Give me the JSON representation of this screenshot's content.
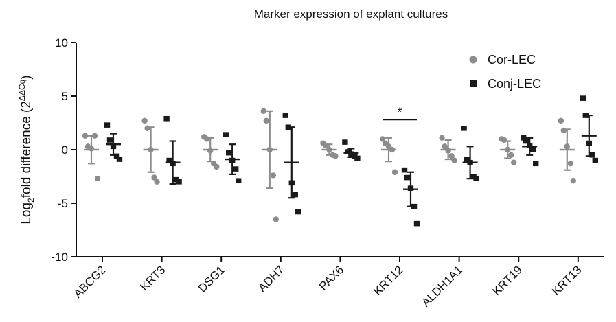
{
  "chart_data": {
    "type": "scatter",
    "title": "Marker expression of explant cultures",
    "ylabel": "Log",
    "ylabel_sub": "2",
    "ylabel_rest": "fold difference (2",
    "ylabel_sup": "ΔΔCq",
    "ylabel_close": ")",
    "ylim": [
      -10,
      10
    ],
    "yticks": [
      10,
      5,
      0,
      -5,
      -10
    ],
    "ytick_labels": [
      "10",
      "5",
      "0",
      "-5",
      "-10"
    ],
    "categories": [
      "ABCG2",
      "KRT3",
      "DSG1",
      "ADH7",
      "PAX6",
      "KRT12",
      "ALDH1A1",
      "KRT19",
      "KRT13"
    ],
    "legend_position": "top-right",
    "colors": {
      "cor": "#8c8c8c",
      "conj": "#1a1a1a",
      "axis": "#111111"
    },
    "significance": [
      {
        "category": "KRT12",
        "label": "*"
      }
    ],
    "series": [
      {
        "name": "Cor-LEC",
        "marker": "circle",
        "color": "#8c8c8c",
        "mean": [
          0.0,
          0.0,
          0.0,
          0.0,
          0.0,
          0.0,
          0.0,
          0.0,
          0.0
        ],
        "sd": [
          1.3,
          2.1,
          1.1,
          3.6,
          0.5,
          1.1,
          0.9,
          0.8,
          1.9
        ],
        "points": [
          [
            1.3,
            0.3,
            0.1,
            1.3,
            -2.7
          ],
          [
            2.7,
            2.0,
            0.0,
            -2.6,
            -3.0
          ],
          [
            1.2,
            1.0,
            -0.1,
            -1.3,
            -1.6
          ],
          [
            3.6,
            2.7,
            0.0,
            -2.4,
            -6.5
          ],
          [
            0.6,
            0.4,
            0.0,
            -0.5,
            -0.6
          ],
          [
            1.0,
            0.6,
            0.3,
            0.0,
            -2.1
          ],
          [
            1.1,
            0.3,
            -0.1,
            -0.6,
            -1.0
          ],
          [
            1.0,
            0.9,
            0.0,
            -0.5,
            -1.2
          ],
          [
            2.7,
            1.8,
            0.3,
            -1.3,
            -2.9
          ]
        ]
      },
      {
        "name": "Conj-LEC",
        "marker": "square",
        "color": "#1a1a1a",
        "mean": [
          0.5,
          -1.2,
          -0.9,
          -1.2,
          -0.3,
          -3.7,
          -1.2,
          0.3,
          1.3
        ],
        "sd": [
          1.0,
          2.0,
          1.4,
          3.3,
          0.4,
          1.6,
          1.5,
          0.8,
          1.9
        ],
        "points": [
          [
            2.3,
            0.9,
            0.3,
            -0.6,
            -0.9
          ],
          [
            2.9,
            -1.0,
            -1.3,
            -2.8,
            -3.0
          ],
          [
            1.4,
            -0.3,
            -1.0,
            -1.8,
            -2.9
          ],
          [
            3.2,
            2.1,
            -3.1,
            -4.2,
            -5.8
          ],
          [
            0.7,
            -0.2,
            -0.4,
            -0.6,
            -0.8
          ],
          [
            -1.9,
            -2.6,
            -3.6,
            -5.3,
            -6.9
          ],
          [
            2.0,
            -0.9,
            -1.2,
            -2.5,
            -2.7
          ],
          [
            1.1,
            0.8,
            0.4,
            0.0,
            -1.3
          ],
          [
            4.8,
            3.2,
            0.6,
            -0.5,
            -1.0
          ]
        ]
      }
    ]
  }
}
